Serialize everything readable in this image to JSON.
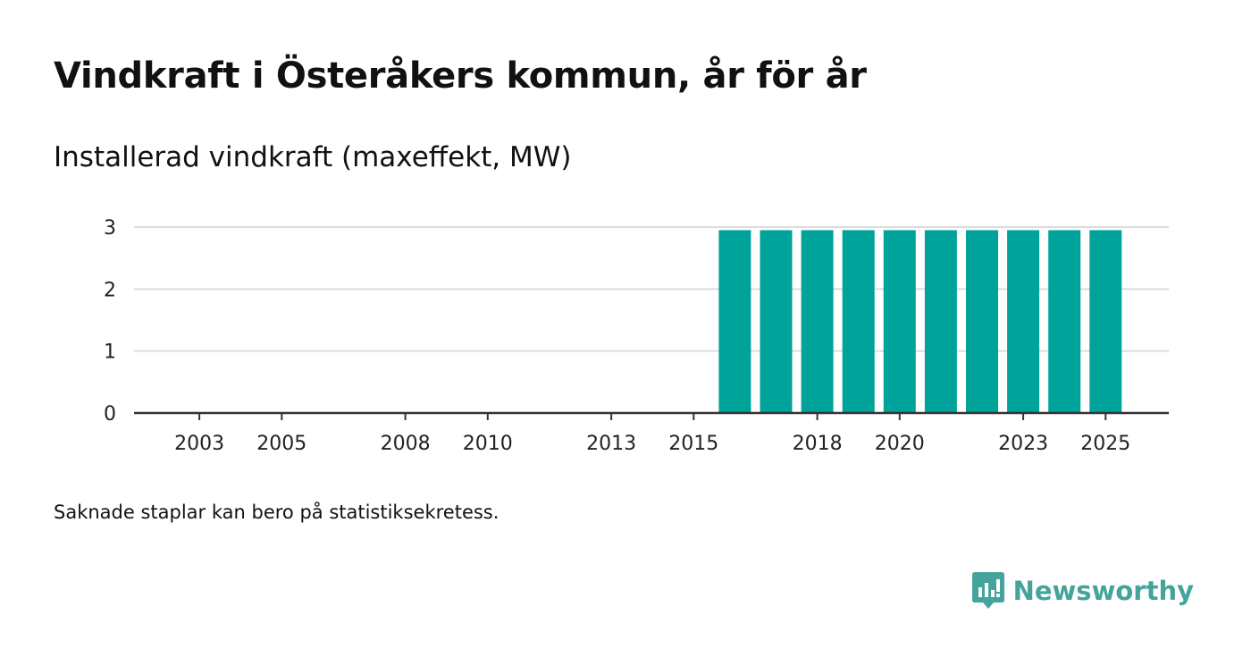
{
  "title": "Vindkraft i Österåkers kommun, år för år",
  "subtitle": "Installerad vindkraft (maxeffekt, MW)",
  "footnote": "Saknade staplar kan bero på statistiksekretess.",
  "brand": {
    "name": "Newsworthy",
    "icon": "newsworthy-logo-icon",
    "color": "#44a39b"
  },
  "chart_data": {
    "type": "bar",
    "title": "Vindkraft i Österåkers kommun, år för år",
    "ylabel": "Installerad vindkraft (maxeffekt, MW)",
    "xlabel": "",
    "categories": [
      2002,
      2003,
      2004,
      2005,
      2006,
      2007,
      2008,
      2009,
      2010,
      2011,
      2012,
      2013,
      2014,
      2015,
      2016,
      2017,
      2018,
      2019,
      2020,
      2021,
      2022,
      2023,
      2024,
      2025
    ],
    "values": [
      0,
      0,
      0,
      0,
      0,
      0,
      0,
      0,
      0,
      0,
      0,
      0,
      0,
      0,
      2.95,
      2.95,
      2.95,
      2.95,
      2.95,
      2.95,
      2.95,
      2.95,
      2.95,
      2.95
    ],
    "x_tick_labels": [
      "2003",
      "2005",
      "2008",
      "2010",
      "2013",
      "2015",
      "2018",
      "2020",
      "2023",
      "2025"
    ],
    "y_ticks": [
      0,
      1,
      2,
      3
    ],
    "ylim": [
      0,
      3
    ],
    "grid": true,
    "bar_color": "#00a39a"
  }
}
